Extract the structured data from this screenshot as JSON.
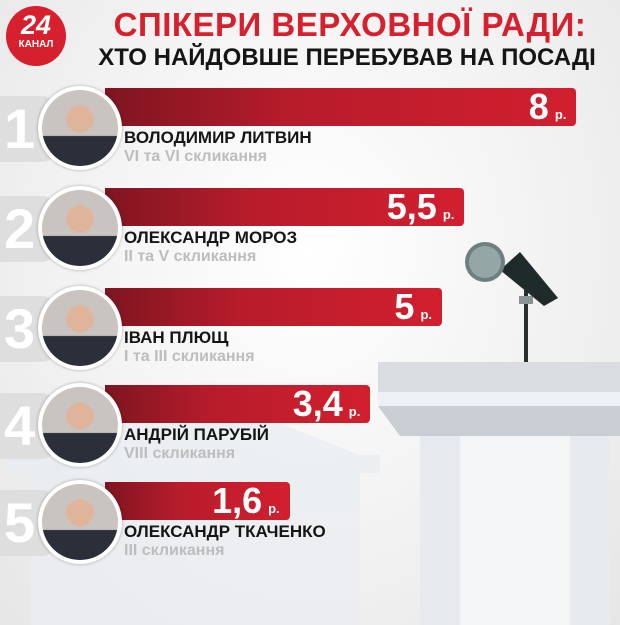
{
  "logo": {
    "number": "24",
    "label": "КАНАЛ"
  },
  "title": "СПІКЕРИ ВЕРХОВНОЇ РАДИ:",
  "subtitle": "ХТО НАЙДОВШЕ ПЕРЕБУВАВ НА ПОСАДІ",
  "colors": {
    "accent": "#d6202d",
    "bar_dark": "#7e1520",
    "rank_bg": "#dedede"
  },
  "chart_data": {
    "type": "bar",
    "orientation": "horizontal",
    "unit": "р.",
    "categories": [
      "ВОЛОДИМИР ЛИТВИН",
      "ОЛЕКСАНДР МОРОЗ",
      "ІВАН ПЛЮЩ",
      "АНДРІЙ ПАРУБІЙ",
      "ОЛЕКСАНДР ТКАЧЕНКО"
    ],
    "values": [
      8,
      5.5,
      5,
      3.4,
      1.6
    ],
    "items": [
      {
        "rank": "1",
        "name": "ВОЛОДИМИР ЛИТВИН",
        "convocations": "VI та VI скликання",
        "value": 8,
        "value_label": "8"
      },
      {
        "rank": "2",
        "name": "ОЛЕКСАНДР МОРОЗ",
        "convocations": "II та V скликання",
        "value": 5.5,
        "value_label": "5,5"
      },
      {
        "rank": "3",
        "name": "ІВАН ПЛЮЩ",
        "convocations": "I та III скликання",
        "value": 5,
        "value_label": "5"
      },
      {
        "rank": "4",
        "name": "АНДРІЙ ПАРУБІЙ",
        "convocations": "VIII скликання",
        "value": 3.4,
        "value_label": "3,4"
      },
      {
        "rank": "5",
        "name": "ОЛЕКСАНДР ТКАЧЕНКО",
        "convocations": "III скликання",
        "value": 1.6,
        "value_label": "1,6"
      }
    ]
  }
}
